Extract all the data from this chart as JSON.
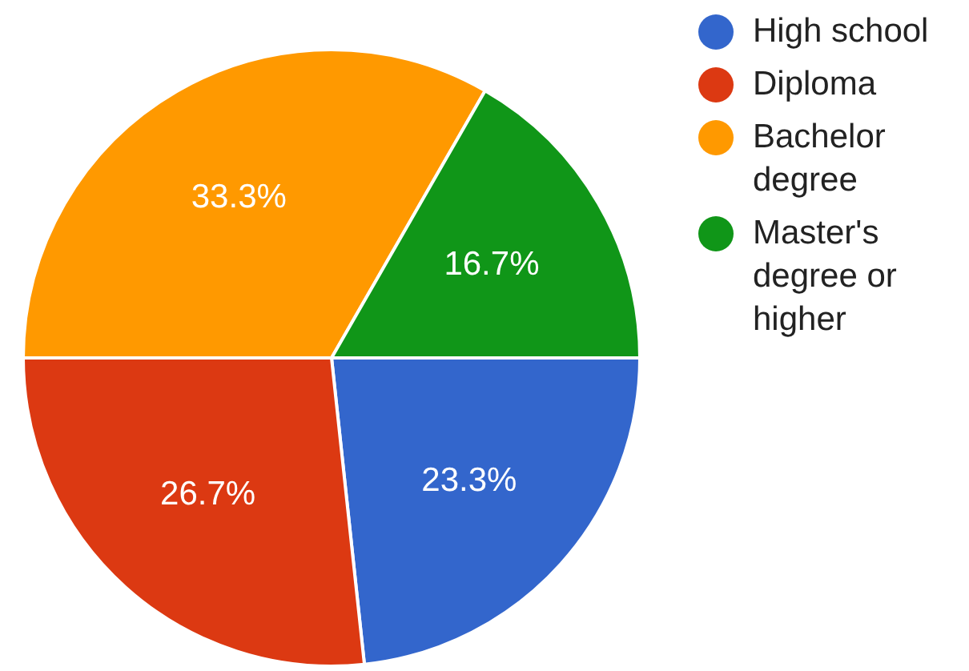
{
  "chart_data": {
    "type": "pie",
    "categories": [
      "High school",
      "Diploma",
      "Bachelor degree",
      "Master's degree or higher"
    ],
    "values": [
      23.3,
      26.7,
      33.3,
      16.7
    ],
    "colors": [
      "#3366cc",
      "#dc3912",
      "#ff9900",
      "#109618"
    ],
    "value_labels": [
      "23.3%",
      "26.7%",
      "33.3%",
      "16.7%"
    ],
    "legend": "top right"
  }
}
